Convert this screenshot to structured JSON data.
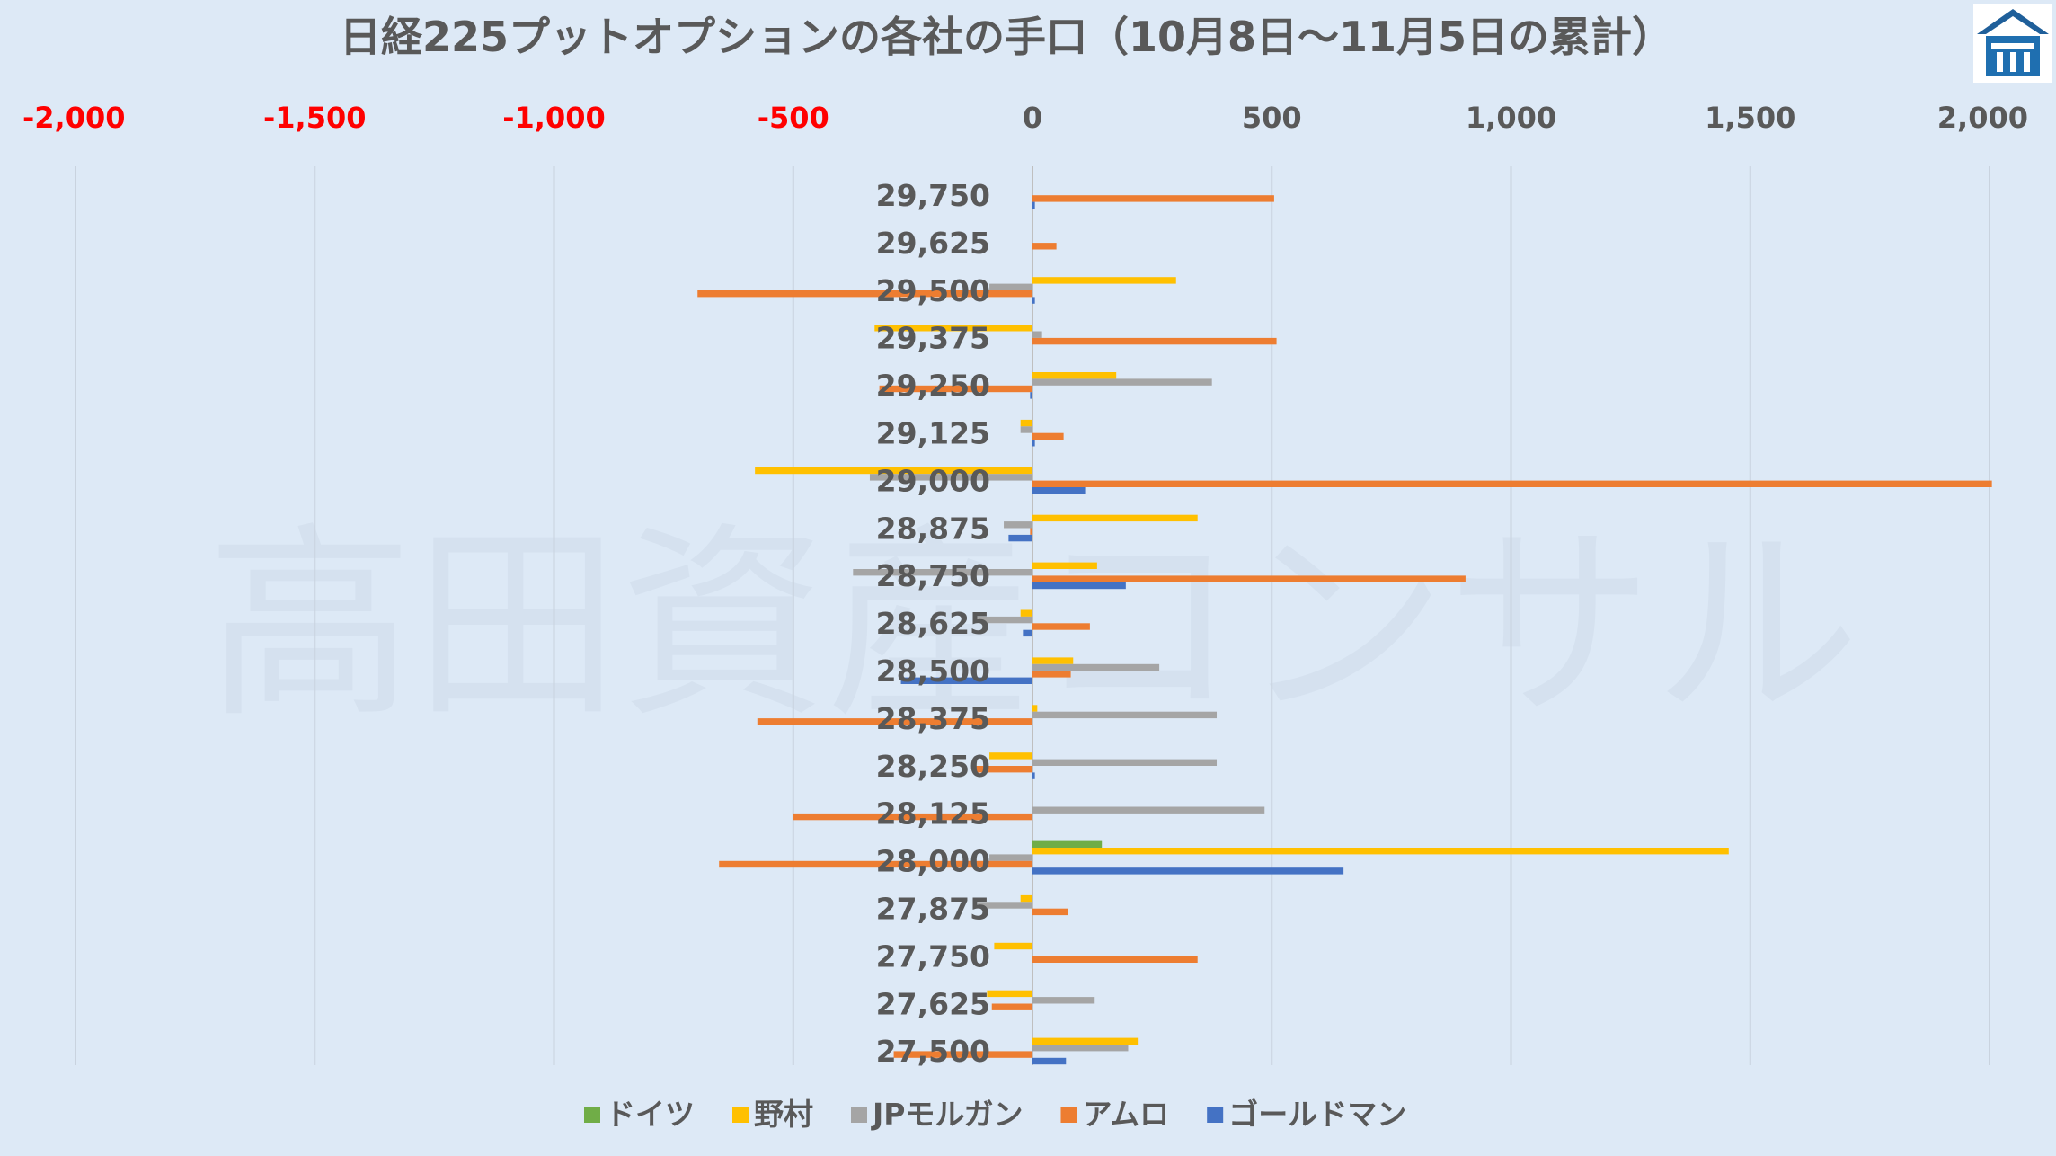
{
  "chart_data": {
    "type": "bar",
    "orientation": "horizontal",
    "title": "日経225プットオプションの各社の手口（10月8日～11月5日の累計）",
    "watermark": "高田資産コンサル",
    "logo": "logo-icon",
    "xlim": [
      -2000,
      2000
    ],
    "x_ticks": [
      {
        "value": -2000,
        "label": "-2,000"
      },
      {
        "value": -1500,
        "label": "-1,500"
      },
      {
        "value": -1000,
        "label": "-1,000"
      },
      {
        "value": -500,
        "label": "-500"
      },
      {
        "value": 0,
        "label": "0"
      },
      {
        "value": 500,
        "label": "500"
      },
      {
        "value": 1000,
        "label": "1,000"
      },
      {
        "value": 1500,
        "label": "1,500"
      },
      {
        "value": 2000,
        "label": "2,000"
      }
    ],
    "x_axis_position": "top",
    "negative_tick_color": "#ff0000",
    "positive_tick_color": "#595959",
    "grid": true,
    "legend_position": "bottom",
    "categories": [
      "29,750",
      "29,625",
      "29,500",
      "29,375",
      "29,250",
      "29,125",
      "29,000",
      "28,875",
      "28,750",
      "28,625",
      "28,500",
      "28,375",
      "28,250",
      "28,125",
      "28,000",
      "27,875",
      "27,750",
      "27,625",
      "27,500"
    ],
    "series": [
      {
        "name": "ドイツ",
        "color": "#70ad47",
        "values": [
          0,
          0,
          0,
          0,
          0,
          0,
          0,
          0,
          0,
          0,
          0,
          0,
          0,
          0,
          145,
          0,
          0,
          0,
          0
        ]
      },
      {
        "name": "野村",
        "color": "#ffc000",
        "values": [
          0,
          0,
          300,
          -330,
          175,
          -25,
          -580,
          345,
          135,
          -25,
          85,
          10,
          -90,
          0,
          1455,
          -25,
          -80,
          -95,
          220
        ]
      },
      {
        "name": "JPモルガン",
        "color": "#a5a5a5",
        "values": [
          0,
          0,
          -90,
          20,
          375,
          -25,
          -340,
          -60,
          -375,
          -120,
          265,
          385,
          385,
          485,
          -90,
          -115,
          0,
          130,
          200
        ]
      },
      {
        "name": "アムロ",
        "color": "#ed7d31",
        "values": [
          505,
          50,
          -700,
          510,
          -320,
          65,
          2005,
          -5,
          905,
          120,
          80,
          -575,
          -120,
          -500,
          -655,
          75,
          345,
          -85,
          -290
        ]
      },
      {
        "name": "ゴールドマン",
        "color": "#4472c4",
        "values": [
          5,
          0,
          5,
          0,
          -5,
          5,
          110,
          -50,
          195,
          -20,
          -275,
          0,
          5,
          0,
          650,
          0,
          0,
          0,
          70
        ]
      }
    ]
  }
}
